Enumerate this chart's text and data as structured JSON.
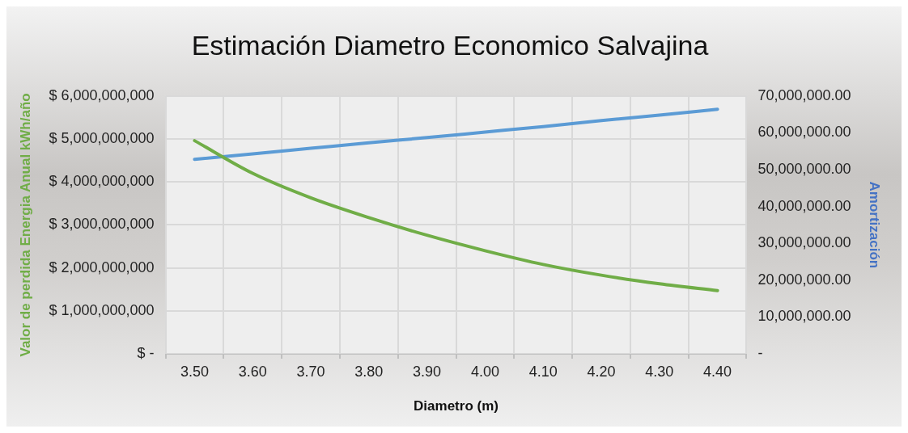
{
  "chart_data": {
    "type": "line",
    "title": "Estimación Diametro Economico Salvajina",
    "xlabel": "Diametro (m)",
    "ylabel": "Valor de perdida Energia Anual kWh/año",
    "y2label": "Amortización",
    "categories": [
      "3.50",
      "3.60",
      "3.70",
      "3.80",
      "3.90",
      "4.00",
      "4.10",
      "4.20",
      "4.30",
      "4.40"
    ],
    "series": [
      {
        "color": "#70ad47",
        "values": [
          4960000000,
          4200000000,
          3630000000,
          3170000000,
          2760000000,
          2400000000,
          2080000000,
          1830000000,
          1630000000,
          1470000000
        ]
      },
      {
        "color": "#5b9bd5",
        "axis": "y2",
        "values": [
          52800000,
          54300000,
          55800000,
          57300000,
          58700000,
          60200000,
          61700000,
          63300000,
          64800000,
          66400000
        ]
      }
    ],
    "ylim": [
      0,
      6000000000
    ],
    "yticks": [
      {
        "value": 0,
        "label": "$ -"
      },
      {
        "value": 1000000000,
        "label": "$ 1,000,000,000"
      },
      {
        "value": 2000000000,
        "label": "$ 2,000,000,000"
      },
      {
        "value": 3000000000,
        "label": "$ 3,000,000,000"
      },
      {
        "value": 4000000000,
        "label": "$ 4,000,000,000"
      },
      {
        "value": 5000000000,
        "label": "$ 5,000,000,000"
      },
      {
        "value": 6000000000,
        "label": "$ 6,000,000,000"
      }
    ],
    "y2lim": [
      0,
      70000000
    ],
    "y2ticks": [
      {
        "value": 0,
        "label": "-"
      },
      {
        "value": 10000000,
        "label": "10,000,000.00"
      },
      {
        "value": 20000000,
        "label": "20,000,000.00"
      },
      {
        "value": 30000000,
        "label": "30,000,000.00"
      },
      {
        "value": 40000000,
        "label": "40,000,000.00"
      },
      {
        "value": 50000000,
        "label": "50,000,000.00"
      },
      {
        "value": 60000000,
        "label": "60,000,000.00"
      },
      {
        "value": 70000000,
        "label": "70,000,000.00"
      }
    ],
    "grid": true,
    "legend": false,
    "marker": "none",
    "line_style": "solid"
  }
}
